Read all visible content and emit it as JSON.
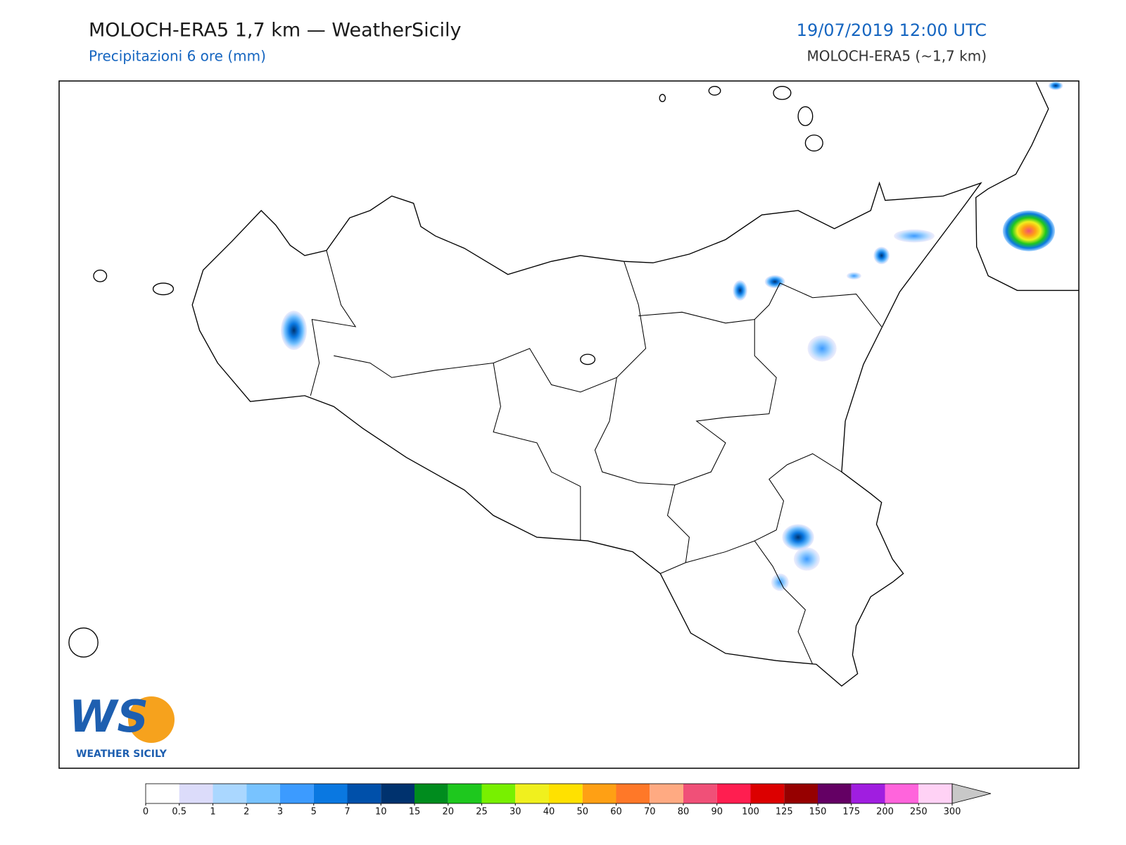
{
  "header": {
    "title": "MOLOCH-ERA5 1,7 km — WeatherSicily",
    "subtitle": "Precipitazioni 6 ore (mm)",
    "date": "19/07/2019 12:00 UTC",
    "model": "MOLOCH-ERA5 (~1,7 km)"
  },
  "logo": {
    "mark": "WS",
    "text": "WEATHER SICILY"
  },
  "colorbar": {
    "ticks": [
      0,
      0.5,
      1,
      2,
      3,
      5,
      7,
      10,
      15,
      20,
      25,
      30,
      40,
      50,
      60,
      70,
      80,
      90,
      100,
      125,
      150,
      175,
      200,
      250,
      300
    ],
    "colors": [
      "#ffffff",
      "#dcdcfa",
      "#aad7ff",
      "#78c3ff",
      "#3c9bff",
      "#0a78e1",
      "#0050aa",
      "#00326e",
      "#008c1e",
      "#1ec81e",
      "#78f000",
      "#f0f01e",
      "#ffe100",
      "#ffa014",
      "#ff7828",
      "#ffaa82",
      "#f05078",
      "#ff1e50",
      "#dc0000",
      "#960000",
      "#640064",
      "#a01ee0",
      "#ff64dc",
      "#ffd2f5"
    ],
    "over_color": "#c8c8c8"
  }
}
